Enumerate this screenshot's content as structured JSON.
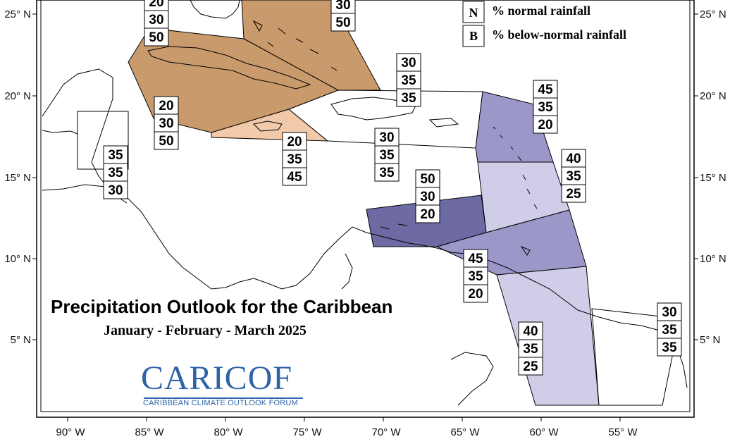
{
  "title": "Precipitation Outlook for the Caribbean",
  "subtitle": "January - February - March 2025",
  "logo": {
    "name": "CARICOF",
    "subtitle": "CARIBBEAN CLIMATE OUTLOOK FORUM"
  },
  "legend": [
    {
      "letter": "N",
      "text": "% normal rainfall"
    },
    {
      "letter": "B",
      "text": "% below-normal rainfall"
    }
  ],
  "axes": {
    "longitude_ticks": [
      "90° W",
      "85° W",
      "80° W",
      "75° W",
      "70° W",
      "65° W",
      "60° W",
      "55° W"
    ],
    "latitude_ticks": [
      "25° N",
      "20° N",
      "15° N",
      "10° N",
      "5° N"
    ]
  },
  "colors": {
    "below_50": "#c89a6c",
    "below_45": "#f2c9a9",
    "above_50": "#6e6aa3",
    "above_45": "#9b97c8",
    "above_40": "#cfcde8",
    "equal": "#ffffff"
  },
  "regions": [
    {
      "id": "bahamas",
      "values": [
        "30",
        "50"
      ]
    },
    {
      "id": "northwest-bahamas",
      "values": [
        "20",
        "30",
        "50"
      ]
    },
    {
      "id": "cuba",
      "values": [
        "20",
        "30",
        "50"
      ]
    },
    {
      "id": "turks-caicos",
      "values": [
        "30",
        "35",
        "35"
      ]
    },
    {
      "id": "belize-yucatan",
      "values": [
        "35",
        "35",
        "30"
      ]
    },
    {
      "id": "jamaica",
      "values": [
        "20",
        "35",
        "45"
      ]
    },
    {
      "id": "hispaniola-pr",
      "values": [
        "30",
        "35",
        "35"
      ]
    },
    {
      "id": "leeward-islands",
      "values": [
        "45",
        "35",
        "20"
      ]
    },
    {
      "id": "windward-islands",
      "values": [
        "40",
        "35",
        "25"
      ]
    },
    {
      "id": "abc-islands",
      "values": [
        "50",
        "30",
        "20"
      ]
    },
    {
      "id": "trinidad",
      "values": [
        "45",
        "35",
        "20"
      ]
    },
    {
      "id": "guyana",
      "values": [
        "40",
        "35",
        "25"
      ]
    },
    {
      "id": "french-guiana",
      "values": [
        "30",
        "35",
        "35"
      ]
    }
  ]
}
